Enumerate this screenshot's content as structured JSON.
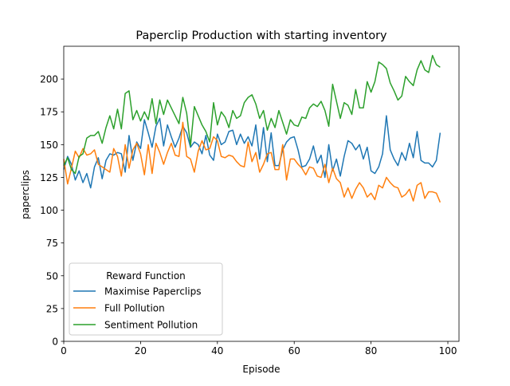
{
  "chart_data": {
    "type": "line",
    "title": "Paperclip Production with starting inventory",
    "xlabel": "Episode",
    "ylabel": "paperclips",
    "xlim": [
      0,
      102.9
    ],
    "ylim": [
      0,
      225
    ],
    "xticks": [
      0,
      20,
      40,
      60,
      80,
      100
    ],
    "yticks": [
      0,
      25,
      50,
      75,
      100,
      125,
      150,
      175,
      200
    ],
    "grid": false,
    "legend": {
      "title": "Reward Function",
      "placement": "lower-left"
    },
    "x": [
      0,
      1,
      2,
      3,
      4,
      5,
      6,
      7,
      8,
      9,
      10,
      11,
      12,
      13,
      14,
      15,
      16,
      17,
      18,
      19,
      20,
      21,
      22,
      23,
      24,
      25,
      26,
      27,
      28,
      29,
      30,
      31,
      32,
      33,
      34,
      35,
      36,
      37,
      38,
      39,
      40,
      41,
      42,
      43,
      44,
      45,
      46,
      47,
      48,
      49,
      50,
      51,
      52,
      53,
      54,
      55,
      56,
      57,
      58,
      59,
      60,
      61,
      62,
      63,
      64,
      65,
      66,
      67,
      68,
      69,
      70,
      71,
      72,
      73,
      74,
      75,
      76,
      77,
      78,
      79,
      80,
      81,
      82,
      83,
      84,
      85,
      86,
      87,
      88,
      89,
      90,
      91,
      92,
      93,
      94,
      95,
      96,
      97,
      98
    ],
    "series": [
      {
        "name": "Maximise Paperclips",
        "color": "#1f77b4",
        "values": [
          131,
          141,
          135,
          123,
          130,
          121,
          128,
          117,
          133,
          140,
          124,
          138,
          143,
          142,
          144,
          143,
          129,
          157,
          138,
          152,
          147,
          169,
          159,
          148,
          164,
          170,
          149,
          165,
          156,
          148,
          155,
          164,
          159,
          148,
          152,
          150,
          143,
          157,
          142,
          138,
          158,
          150,
          152,
          160,
          161,
          150,
          158,
          151,
          156,
          149,
          165,
          139,
          163,
          137,
          159,
          134,
          134,
          146,
          152,
          155,
          156,
          146,
          133,
          134,
          139,
          149,
          136,
          142,
          125,
          150,
          130,
          139,
          126,
          141,
          153,
          151,
          146,
          150,
          139,
          148,
          130,
          128,
          133,
          143,
          172,
          146,
          139,
          134,
          144,
          138,
          151,
          140,
          160,
          138,
          136,
          136,
          133,
          138,
          159
        ]
      },
      {
        "name": "Full Pollution",
        "color": "#ff7f0e",
        "values": [
          139,
          120,
          132,
          145,
          140,
          147,
          142,
          143,
          146,
          135,
          133,
          131,
          129,
          147,
          141,
          126,
          150,
          132,
          146,
          151,
          143,
          127,
          150,
          128,
          151,
          144,
          135,
          144,
          151,
          142,
          141,
          167,
          141,
          139,
          129,
          145,
          153,
          146,
          147,
          156,
          153,
          141,
          140,
          142,
          141,
          137,
          134,
          133,
          152,
          137,
          144,
          129,
          135,
          143,
          144,
          131,
          131,
          150,
          123,
          139,
          139,
          135,
          132,
          127,
          133,
          132,
          126,
          125,
          135,
          121,
          132,
          124,
          121,
          110,
          117,
          109,
          116,
          121,
          117,
          110,
          113,
          108,
          119,
          117,
          125,
          121,
          118,
          117,
          110,
          112,
          116,
          107,
          119,
          121,
          109,
          114,
          114,
          113,
          106
        ]
      },
      {
        "name": "Sentiment Pollution",
        "color": "#2ca02c",
        "values": [
          134,
          140,
          131,
          128,
          141,
          143,
          155,
          157,
          157,
          160,
          151,
          163,
          172,
          162,
          177,
          162,
          189,
          191,
          169,
          176,
          168,
          175,
          169,
          185,
          166,
          184,
          173,
          184,
          178,
          172,
          166,
          186,
          174,
          149,
          179,
          172,
          165,
          160,
          152,
          182,
          165,
          175,
          171,
          163,
          176,
          170,
          172,
          182,
          186,
          188,
          181,
          170,
          176,
          161,
          170,
          163,
          176,
          167,
          158,
          169,
          165,
          164,
          171,
          170,
          178,
          181,
          179,
          183,
          176,
          164,
          196,
          183,
          170,
          182,
          180,
          173,
          192,
          178,
          178,
          198,
          190,
          198,
          213,
          211,
          208,
          197,
          191,
          184,
          187,
          202,
          198,
          195,
          207,
          214,
          207,
          205,
          218,
          211,
          209
        ]
      }
    ]
  }
}
